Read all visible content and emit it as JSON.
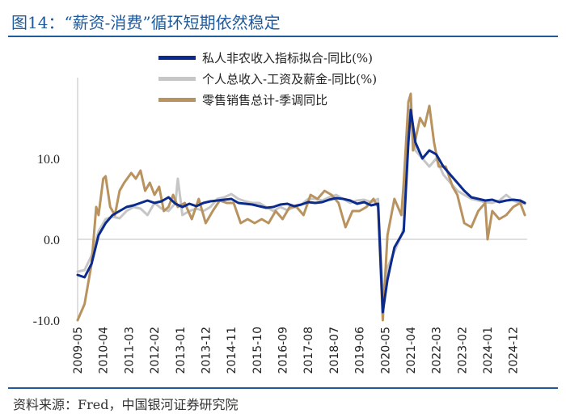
{
  "header": {
    "title": "图14：“薪资-消费”循环短期依然稳定"
  },
  "footer": {
    "source": "资料来源：Fred，中国银河证券研究院"
  },
  "colors": {
    "accent": "#1f5a9c"
  },
  "chart_data": {
    "type": "line",
    "title": "",
    "xlabel": "",
    "ylabel": "",
    "ylim": [
      -10,
      20
    ],
    "yticks": [
      -10,
      0,
      10
    ],
    "ytick_labels": [
      "-10.0",
      "0.0",
      "10.0"
    ],
    "xticks": [
      "2009-05",
      "2010-04",
      "2011-03",
      "2012-02",
      "2013-01",
      "2013-12",
      "2014-11",
      "2015-10",
      "2016-09",
      "2017-08",
      "2018-07",
      "2019-06",
      "2020-05",
      "2021-04",
      "2022-03",
      "2023-02",
      "2024-01",
      "2024-12"
    ],
    "legend_position": "top-center",
    "grid": false,
    "series": [
      {
        "name": "私人非农收入指标拟合-同比(%)",
        "color": "#0a2a8c",
        "points": [
          [
            "2009-05",
            -4.4
          ],
          [
            "2009-08",
            -4.7
          ],
          [
            "2009-11",
            -3.0
          ],
          [
            "2010-02",
            0.5
          ],
          [
            "2010-05",
            2.0
          ],
          [
            "2010-08",
            3.0
          ],
          [
            "2010-11",
            3.5
          ],
          [
            "2011-02",
            4.0
          ],
          [
            "2011-05",
            4.2
          ],
          [
            "2011-08",
            4.5
          ],
          [
            "2011-11",
            4.8
          ],
          [
            "2012-02",
            4.5
          ],
          [
            "2012-05",
            4.7
          ],
          [
            "2012-08",
            5.2
          ],
          [
            "2012-11",
            4.4
          ],
          [
            "2013-02",
            4.0
          ],
          [
            "2013-05",
            4.4
          ],
          [
            "2013-08",
            4.1
          ],
          [
            "2013-11",
            4.5
          ],
          [
            "2014-02",
            4.7
          ],
          [
            "2014-05",
            4.8
          ],
          [
            "2014-08",
            4.9
          ],
          [
            "2014-11",
            5.0
          ],
          [
            "2015-02",
            4.5
          ],
          [
            "2015-05",
            4.4
          ],
          [
            "2015-08",
            4.3
          ],
          [
            "2015-11",
            4.1
          ],
          [
            "2016-02",
            3.9
          ],
          [
            "2016-05",
            4.0
          ],
          [
            "2016-08",
            4.3
          ],
          [
            "2016-11",
            4.4
          ],
          [
            "2017-02",
            4.1
          ],
          [
            "2017-05",
            4.3
          ],
          [
            "2017-08",
            4.6
          ],
          [
            "2017-11",
            4.5
          ],
          [
            "2018-02",
            4.6
          ],
          [
            "2018-05",
            4.9
          ],
          [
            "2018-08",
            5.1
          ],
          [
            "2018-11",
            5.0
          ],
          [
            "2019-02",
            4.8
          ],
          [
            "2019-05",
            4.4
          ],
          [
            "2019-08",
            4.6
          ],
          [
            "2019-11",
            4.2
          ],
          [
            "2020-02",
            4.4
          ],
          [
            "2020-04",
            -9.0
          ],
          [
            "2020-06",
            -5.0
          ],
          [
            "2020-09",
            -1.0
          ],
          [
            "2020-12",
            0.5
          ],
          [
            "2021-01",
            1.0
          ],
          [
            "2021-03",
            12.0
          ],
          [
            "2021-04",
            16.0
          ],
          [
            "2021-06",
            12.0
          ],
          [
            "2021-09",
            10.0
          ],
          [
            "2021-12",
            11.0
          ],
          [
            "2022-03",
            10.5
          ],
          [
            "2022-06",
            9.0
          ],
          [
            "2022-09",
            8.0
          ],
          [
            "2022-12",
            7.0
          ],
          [
            "2023-03",
            6.0
          ],
          [
            "2023-06",
            5.2
          ],
          [
            "2023-09",
            5.0
          ],
          [
            "2023-12",
            4.8
          ],
          [
            "2024-03",
            4.9
          ],
          [
            "2024-06",
            4.6
          ],
          [
            "2024-09",
            4.8
          ],
          [
            "2024-12",
            4.9
          ],
          [
            "2025-03",
            4.8
          ],
          [
            "2025-05",
            4.5
          ]
        ]
      },
      {
        "name": "个人总收入-工资及薪金-同比(%)",
        "color": "#c6c6c6",
        "points": [
          [
            "2009-05",
            -4.0
          ],
          [
            "2009-08",
            -3.8
          ],
          [
            "2009-11",
            -2.0
          ],
          [
            "2010-02",
            1.0
          ],
          [
            "2010-05",
            2.5
          ],
          [
            "2010-08",
            2.8
          ],
          [
            "2010-11",
            2.6
          ],
          [
            "2011-02",
            3.5
          ],
          [
            "2011-05",
            4.0
          ],
          [
            "2011-08",
            3.8
          ],
          [
            "2011-11",
            3.0
          ],
          [
            "2012-02",
            4.5
          ],
          [
            "2012-05",
            3.8
          ],
          [
            "2012-08",
            3.5
          ],
          [
            "2012-11",
            4.5
          ],
          [
            "2012-12",
            7.5
          ],
          [
            "2013-02",
            3.0
          ],
          [
            "2013-05",
            3.5
          ],
          [
            "2013-08",
            3.8
          ],
          [
            "2013-11",
            3.5
          ],
          [
            "2014-02",
            4.0
          ],
          [
            "2014-05",
            5.0
          ],
          [
            "2014-08",
            5.2
          ],
          [
            "2014-11",
            5.6
          ],
          [
            "2015-02",
            5.0
          ],
          [
            "2015-05",
            4.7
          ],
          [
            "2015-08",
            4.5
          ],
          [
            "2015-11",
            4.5
          ],
          [
            "2016-02",
            4.0
          ],
          [
            "2016-05",
            3.5
          ],
          [
            "2016-08",
            4.0
          ],
          [
            "2016-11",
            3.6
          ],
          [
            "2017-02",
            4.0
          ],
          [
            "2017-05",
            4.3
          ],
          [
            "2017-08",
            5.0
          ],
          [
            "2017-11",
            5.0
          ],
          [
            "2018-02",
            4.8
          ],
          [
            "2018-05",
            5.2
          ],
          [
            "2018-08",
            5.5
          ],
          [
            "2018-11",
            5.0
          ],
          [
            "2019-02",
            4.5
          ],
          [
            "2019-05",
            4.8
          ],
          [
            "2019-08",
            4.9
          ],
          [
            "2019-11",
            4.6
          ],
          [
            "2020-02",
            5.0
          ],
          [
            "2020-04",
            -7.0
          ],
          [
            "2020-06",
            -3.5
          ],
          [
            "2020-09",
            -1.5
          ],
          [
            "2020-12",
            0.5
          ],
          [
            "2021-01",
            1.5
          ],
          [
            "2021-03",
            14.0
          ],
          [
            "2021-04",
            16.5
          ],
          [
            "2021-06",
            11.0
          ],
          [
            "2021-09",
            10.0
          ],
          [
            "2021-12",
            9.0
          ],
          [
            "2022-03",
            10.0
          ],
          [
            "2022-06",
            8.0
          ],
          [
            "2022-09",
            7.0
          ],
          [
            "2022-12",
            6.0
          ],
          [
            "2023-03",
            5.5
          ],
          [
            "2023-06",
            5.0
          ],
          [
            "2023-09",
            4.8
          ],
          [
            "2023-12",
            4.6
          ],
          [
            "2024-03",
            4.5
          ],
          [
            "2024-06",
            4.8
          ],
          [
            "2024-09",
            5.5
          ],
          [
            "2024-12",
            4.8
          ],
          [
            "2025-03",
            4.5
          ],
          [
            "2025-05",
            4.4
          ]
        ]
      },
      {
        "name": "零售销售总计-季调同比",
        "color": "#b8935f",
        "points": [
          [
            "2009-05",
            -10.0
          ],
          [
            "2009-08",
            -8.0
          ],
          [
            "2009-11",
            -3.0
          ],
          [
            "2010-01",
            4.0
          ],
          [
            "2010-02",
            3.0
          ],
          [
            "2010-04",
            7.5
          ],
          [
            "2010-05",
            7.8
          ],
          [
            "2010-07",
            4.0
          ],
          [
            "2010-09",
            3.0
          ],
          [
            "2010-11",
            6.0
          ],
          [
            "2011-01",
            7.0
          ],
          [
            "2011-04",
            8.2
          ],
          [
            "2011-06",
            7.5
          ],
          [
            "2011-08",
            8.5
          ],
          [
            "2011-10",
            6.0
          ],
          [
            "2011-12",
            7.0
          ],
          [
            "2012-02",
            5.5
          ],
          [
            "2012-04",
            6.5
          ],
          [
            "2012-06",
            3.5
          ],
          [
            "2012-08",
            4.0
          ],
          [
            "2012-10",
            5.5
          ],
          [
            "2012-12",
            4.0
          ],
          [
            "2013-03",
            4.5
          ],
          [
            "2013-06",
            2.5
          ],
          [
            "2013-09",
            5.0
          ],
          [
            "2013-12",
            2.0
          ],
          [
            "2014-03",
            3.5
          ],
          [
            "2014-06",
            4.8
          ],
          [
            "2014-09",
            4.5
          ],
          [
            "2014-12",
            4.5
          ],
          [
            "2015-03",
            2.0
          ],
          [
            "2015-06",
            2.5
          ],
          [
            "2015-09",
            2.0
          ],
          [
            "2015-12",
            2.5
          ],
          [
            "2016-03",
            2.0
          ],
          [
            "2016-06",
            3.5
          ],
          [
            "2016-09",
            2.5
          ],
          [
            "2016-12",
            4.0
          ],
          [
            "2017-03",
            4.0
          ],
          [
            "2017-06",
            3.0
          ],
          [
            "2017-09",
            5.5
          ],
          [
            "2017-12",
            5.0
          ],
          [
            "2018-03",
            6.0
          ],
          [
            "2018-06",
            5.5
          ],
          [
            "2018-09",
            4.5
          ],
          [
            "2018-12",
            1.5
          ],
          [
            "2019-03",
            3.5
          ],
          [
            "2019-06",
            3.5
          ],
          [
            "2019-09",
            4.0
          ],
          [
            "2019-12",
            5.0
          ],
          [
            "2020-02",
            4.0
          ],
          [
            "2020-04",
            -10.0
          ],
          [
            "2020-06",
            0.5
          ],
          [
            "2020-09",
            5.0
          ],
          [
            "2020-12",
            3.0
          ],
          [
            "2021-01",
            7.0
          ],
          [
            "2021-03",
            17.0
          ],
          [
            "2021-04",
            18.0
          ],
          [
            "2021-05",
            11.0
          ],
          [
            "2021-08",
            15.0
          ],
          [
            "2021-10",
            14.0
          ],
          [
            "2021-12",
            16.5
          ],
          [
            "2022-02",
            12.0
          ],
          [
            "2022-04",
            9.0
          ],
          [
            "2022-07",
            9.0
          ],
          [
            "2022-10",
            6.5
          ],
          [
            "2022-12",
            5.5
          ],
          [
            "2023-03",
            2.0
          ],
          [
            "2023-06",
            1.5
          ],
          [
            "2023-09",
            3.5
          ],
          [
            "2023-12",
            4.5
          ],
          [
            "2024-01",
            0.0
          ],
          [
            "2024-03",
            3.5
          ],
          [
            "2024-06",
            2.5
          ],
          [
            "2024-09",
            3.0
          ],
          [
            "2024-12",
            4.0
          ],
          [
            "2025-03",
            4.5
          ],
          [
            "2025-05",
            3.0
          ]
        ]
      }
    ]
  }
}
